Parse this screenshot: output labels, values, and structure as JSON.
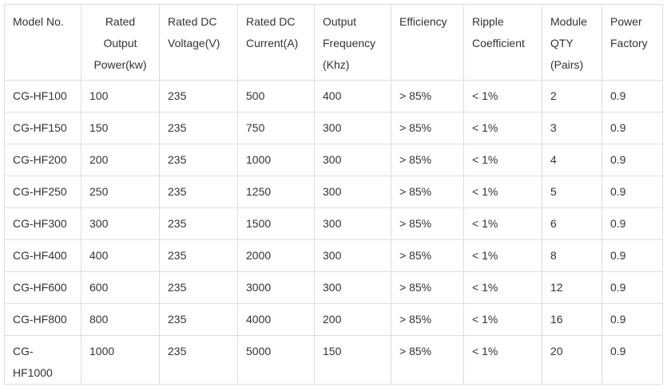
{
  "table": {
    "headers": [
      {
        "key": "model",
        "lines": [
          "Model No."
        ],
        "center": false
      },
      {
        "key": "power",
        "lines": [
          "Rated",
          "Output",
          "Power(kw)"
        ],
        "center": true
      },
      {
        "key": "voltage",
        "lines": [
          "Rated DC",
          "Voltage(V)"
        ],
        "center": false
      },
      {
        "key": "current",
        "lines": [
          "Rated DC",
          "Current(A)"
        ],
        "center": false
      },
      {
        "key": "frequency",
        "lines": [
          "Output",
          "Frequency",
          "(Khz)"
        ],
        "center": false
      },
      {
        "key": "efficiency",
        "lines": [
          "Efficiency"
        ],
        "center": false
      },
      {
        "key": "ripple",
        "lines": [
          "Ripple",
          "Coefficient"
        ],
        "center": false
      },
      {
        "key": "module_qty",
        "lines": [
          "Module",
          "QTY",
          "(Pairs)"
        ],
        "center": false
      },
      {
        "key": "power_factor",
        "lines": [
          "Power",
          "Factory"
        ],
        "center": false
      }
    ],
    "rows": [
      [
        "CG-HF100",
        "100",
        "235",
        "500",
        "400",
        "> 85%",
        "< 1%",
        "2",
        "0.9"
      ],
      [
        "CG-HF150",
        "150",
        "235",
        "750",
        "300",
        "> 85%",
        "< 1%",
        "3",
        "0.9"
      ],
      [
        "CG-HF200",
        "200",
        "235",
        "1000",
        "300",
        "> 85%",
        "< 1%",
        "4",
        "0.9"
      ],
      [
        "CG-HF250",
        "250",
        "235",
        "1250",
        "300",
        "> 85%",
        "< 1%",
        "5",
        "0.9"
      ],
      [
        "CG-HF300",
        "300",
        "235",
        "1500",
        "300",
        "> 85%",
        "< 1%",
        "6",
        "0.9"
      ],
      [
        "CG-HF400",
        "400",
        "235",
        "2000",
        "300",
        "> 85%",
        "< 1%",
        "8",
        "0.9"
      ],
      [
        "CG-HF600",
        "600",
        "235",
        "3000",
        "300",
        "> 85%",
        "< 1%",
        "12",
        "0.9"
      ],
      [
        "CG-HF800",
        "800",
        "235",
        "4000",
        "200",
        "> 85%",
        "< 1%",
        "16",
        "0.9"
      ],
      [
        "CG-HF1000",
        "1000",
        "235",
        "5000",
        "150",
        "> 85%",
        "< 1%",
        "20",
        "0.9"
      ]
    ]
  }
}
